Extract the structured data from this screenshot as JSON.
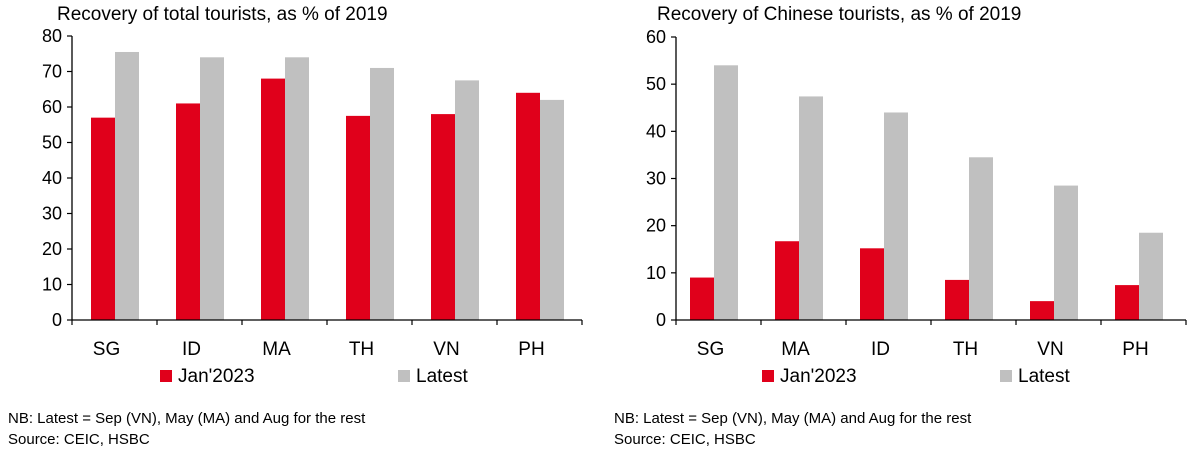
{
  "colors": {
    "jan": "#e0001b",
    "latest": "#c0c0c0",
    "axis": "#000000"
  },
  "chart_data": [
    {
      "type": "bar",
      "title": "Recovery of total  tourists,  as % of 2019",
      "categories": [
        "SG",
        "ID",
        "MA",
        "TH",
        "VN",
        "PH"
      ],
      "series": [
        {
          "name": "Jan'2023",
          "values": [
            57,
            61,
            68,
            57.5,
            58,
            64
          ]
        },
        {
          "name": "Latest",
          "values": [
            75.5,
            74,
            74,
            71,
            67.5,
            62
          ]
        }
      ],
      "ylim": [
        0,
        80
      ],
      "yticks": [
        "0",
        "10",
        "20",
        "30",
        "40",
        "50",
        "60",
        "70",
        "80"
      ],
      "legend_position": "bottom",
      "grid": false,
      "notes": [
        "NB: Latest = Sep (VN), May (MA) and Aug for the rest",
        "Source: CEIC, HSBC"
      ]
    },
    {
      "type": "bar",
      "title": "Recovery of Chinese tourists,  as % of 2019",
      "categories": [
        "SG",
        "MA",
        "ID",
        "TH",
        "VN",
        "PH"
      ],
      "series": [
        {
          "name": "Jan'2023",
          "values": [
            9,
            16.7,
            15.2,
            8.5,
            4,
            7.4
          ]
        },
        {
          "name": "Latest",
          "values": [
            54,
            47.4,
            44,
            34.5,
            28.5,
            18.5
          ]
        }
      ],
      "ylim": [
        0,
        60
      ],
      "yticks": [
        "0",
        "10",
        "20",
        "30",
        "40",
        "50",
        "60"
      ],
      "legend_position": "bottom",
      "grid": false,
      "notes": [
        "NB: Latest = Sep (VN), May (MA) and Aug for the rest",
        "Source: CEIC, HSBC"
      ]
    }
  ]
}
